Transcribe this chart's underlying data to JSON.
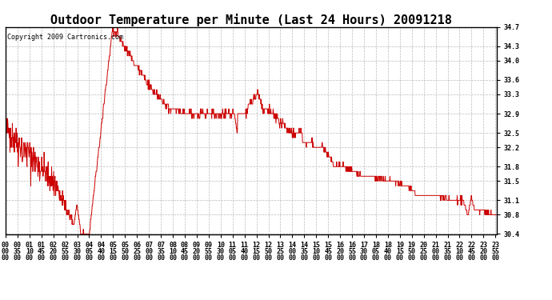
{
  "title": "Outdoor Temperature per Minute (Last 24 Hours) 20091218",
  "copyright_text": "Copyright 2009 Cartronics.com",
  "line_color": "#cc0000",
  "background_color": "#ffffff",
  "grid_color": "#bbbbbb",
  "ylim": [
    30.4,
    34.7
  ],
  "yticks": [
    30.4,
    30.8,
    31.1,
    31.5,
    31.8,
    32.2,
    32.5,
    32.9,
    33.3,
    33.6,
    34.0,
    34.3,
    34.7
  ],
  "title_fontsize": 11,
  "tick_fontsize": 6,
  "copyright_fontsize": 6,
  "x_tick_interval": 35,
  "total_minutes": 1440
}
